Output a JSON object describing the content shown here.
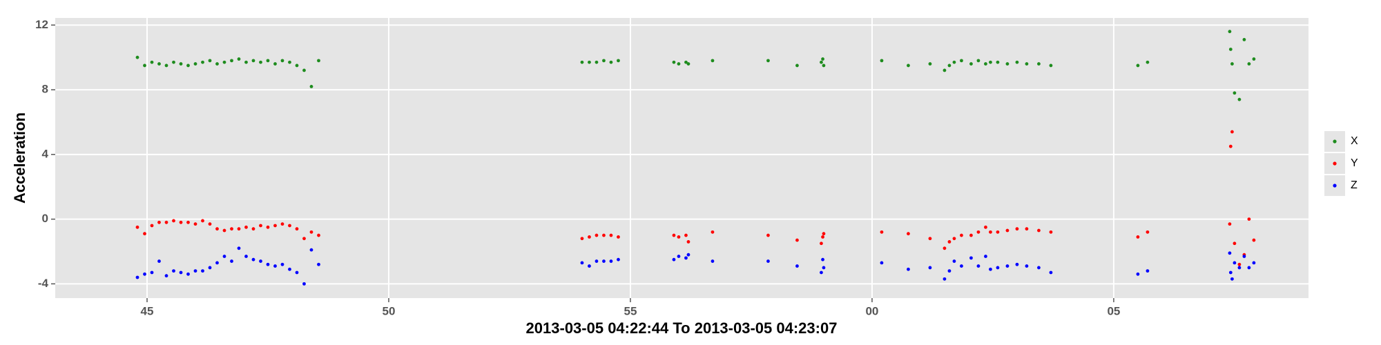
{
  "chart_data": {
    "type": "scatter",
    "x_label": "2013-03-05 04:22:44 To 2013-03-05 04:23:07",
    "y_label": "Acceleration",
    "x": [
      44.8,
      44.95,
      45.1,
      45.25,
      45.4,
      45.55,
      45.7,
      45.85,
      46.0,
      46.15,
      46.3,
      46.45,
      46.6,
      46.75,
      46.9,
      47.05,
      47.2,
      47.35,
      47.5,
      47.65,
      47.8,
      47.95,
      48.1,
      48.25,
      48.4,
      48.55,
      54.0,
      54.15,
      54.3,
      54.45,
      54.6,
      54.75,
      55.9,
      56.0,
      56.15,
      56.2,
      56.7,
      57.85,
      58.45,
      58.95,
      58.98,
      59.0,
      60.2,
      60.75,
      61.2,
      61.5,
      61.6,
      61.7,
      61.85,
      62.05,
      62.2,
      62.35,
      62.45,
      62.6,
      62.8,
      63.0,
      63.2,
      63.45,
      63.7,
      65.5,
      65.7,
      67.4,
      67.42,
      67.45,
      67.5,
      67.6,
      67.7,
      67.8,
      67.9
    ],
    "series": [
      {
        "name": "X",
        "color": "#1e8c1e",
        "values": [
          10.0,
          9.5,
          9.7,
          9.6,
          9.5,
          9.7,
          9.6,
          9.5,
          9.6,
          9.7,
          9.8,
          9.6,
          9.7,
          9.8,
          9.9,
          9.7,
          9.8,
          9.7,
          9.8,
          9.6,
          9.8,
          9.7,
          9.5,
          9.2,
          8.2,
          9.8,
          9.7,
          9.7,
          9.7,
          9.8,
          9.7,
          9.8,
          9.7,
          9.6,
          9.7,
          9.6,
          9.8,
          9.8,
          9.5,
          9.7,
          9.9,
          9.5,
          9.8,
          9.5,
          9.6,
          9.2,
          9.5,
          9.7,
          9.8,
          9.6,
          9.8,
          9.6,
          9.7,
          9.7,
          9.6,
          9.7,
          9.6,
          9.6,
          9.5,
          9.5,
          9.7,
          11.6,
          10.5,
          9.6,
          7.8,
          7.4,
          11.1,
          9.6,
          9.9
        ]
      },
      {
        "name": "Y",
        "color": "#ff0000",
        "values": [
          -0.5,
          -0.9,
          -0.4,
          -0.2,
          -0.2,
          -0.1,
          -0.2,
          -0.2,
          -0.3,
          -0.1,
          -0.3,
          -0.6,
          -0.7,
          -0.6,
          -0.6,
          -0.5,
          -0.6,
          -0.4,
          -0.5,
          -0.4,
          -0.3,
          -0.4,
          -0.6,
          -1.2,
          -0.8,
          -1.0,
          -1.2,
          -1.1,
          -1.0,
          -1.0,
          -1.0,
          -1.1,
          -1.0,
          -1.1,
          -1.0,
          -1.4,
          -0.8,
          -1.0,
          -1.3,
          -1.5,
          -1.1,
          -0.9,
          -0.8,
          -0.9,
          -1.2,
          -1.8,
          -1.4,
          -1.2,
          -1.0,
          -1.0,
          -0.8,
          -0.5,
          -0.8,
          -0.8,
          -0.7,
          -0.6,
          -0.6,
          -0.7,
          -0.8,
          -1.1,
          -0.8,
          -0.3,
          4.5,
          5.4,
          -1.5,
          -2.8,
          -2.2,
          0.0,
          -1.3
        ]
      },
      {
        "name": "Z",
        "color": "#0000ff",
        "values": [
          -3.6,
          -3.4,
          -3.3,
          -2.6,
          -3.5,
          -3.2,
          -3.3,
          -3.4,
          -3.2,
          -3.2,
          -3.0,
          -2.7,
          -2.3,
          -2.6,
          -1.8,
          -2.3,
          -2.5,
          -2.6,
          -2.8,
          -2.9,
          -2.8,
          -3.1,
          -3.3,
          -4.0,
          -1.9,
          -2.8,
          -2.7,
          -2.9,
          -2.6,
          -2.6,
          -2.6,
          -2.5,
          -2.5,
          -2.3,
          -2.4,
          -2.2,
          -2.6,
          -2.6,
          -2.9,
          -3.3,
          -2.5,
          -3.0,
          -2.7,
          -3.1,
          -3.0,
          -3.7,
          -3.2,
          -2.6,
          -2.9,
          -2.4,
          -2.9,
          -2.3,
          -3.1,
          -3.0,
          -2.9,
          -2.8,
          -2.9,
          -3.0,
          -3.3,
          -3.4,
          -3.2,
          -2.1,
          -3.3,
          -3.7,
          -2.7,
          -3.0,
          -2.3,
          -3.0,
          -2.7
        ]
      }
    ],
    "xlim": [
      43.1,
      69.03
    ],
    "ylim": [
      -4.88,
      12.44
    ],
    "xticks": [
      45,
      50,
      55,
      {
        "value": 60,
        "label": "00"
      },
      {
        "value": 65,
        "label": "05"
      }
    ],
    "yticks": [
      -4,
      0,
      4,
      8,
      12
    ],
    "grid": true,
    "legend": "right"
  }
}
